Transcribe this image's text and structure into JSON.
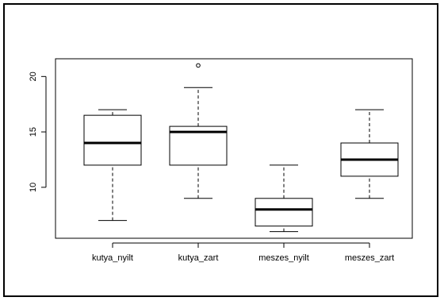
{
  "chart_data": {
    "type": "box",
    "categories": [
      "kutya_nyilt",
      "kutya_zart",
      "meszes_nyilt",
      "meszes_zart"
    ],
    "boxes": [
      {
        "category": "kutya_nyilt",
        "whisker_low": 7,
        "q1": 12,
        "median": 14,
        "q3": 16.5,
        "whisker_high": 17,
        "outliers": []
      },
      {
        "category": "kutya_zart",
        "whisker_low": 9,
        "q1": 12,
        "median": 15,
        "q3": 15.5,
        "whisker_high": 19,
        "outliers": [
          21
        ]
      },
      {
        "category": "meszes_nyilt",
        "whisker_low": 6,
        "q1": 6.5,
        "median": 8,
        "q3": 9,
        "whisker_high": 12,
        "outliers": []
      },
      {
        "category": "meszes_zart",
        "whisker_low": 9,
        "q1": 11,
        "median": 12.5,
        "q3": 14,
        "whisker_high": 17,
        "outliers": []
      }
    ],
    "yticks": [
      10,
      15,
      20
    ],
    "ylim": [
      5.4,
      21.6
    ],
    "title": "",
    "xlabel": "",
    "ylabel": ""
  }
}
